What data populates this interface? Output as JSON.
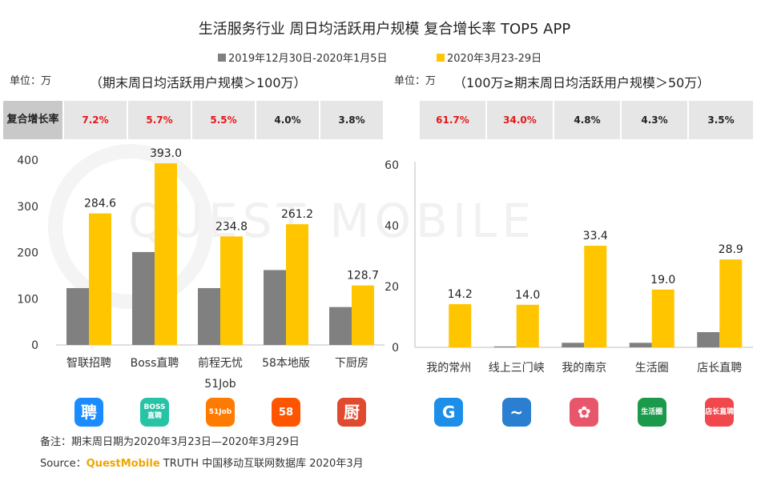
{
  "title": "生活服务行业 周日均活跃用户规模 复合增长率 TOP5 APP",
  "legend": [
    {
      "label": "2019年12月30日-2020年1月5日",
      "color": "#808080"
    },
    {
      "label": "2020年3月23-29日",
      "color": "#ffc600"
    }
  ],
  "left_panel": {
    "unit": "单位：万",
    "subtitle": "（期末周日均活跃用户规模＞100万）",
    "cagr_label": "复合增长率",
    "cagr": [
      "7.2%",
      "5.7%",
      "5.5%",
      "4.0%",
      "3.8%"
    ]
  },
  "right_panel": {
    "unit": "单位：万",
    "subtitle": "（100万≥期末周日均活跃用户规模＞50万）",
    "cagr": [
      "61.7%",
      "34.0%",
      "4.8%",
      "4.3%",
      "3.5%"
    ]
  },
  "icons": {
    "left": [
      {
        "name": "zhilian-app-icon",
        "text": "聘",
        "color": "#1a8cff"
      },
      {
        "name": "boss-app-icon",
        "text": "BOSS直聘",
        "color": "#27c3a5"
      },
      {
        "name": "51job-app-icon",
        "text": "51Job",
        "color": "#ff7a00"
      },
      {
        "name": "58-app-icon",
        "text": "58",
        "color": "#ff5500"
      },
      {
        "name": "xiachufang-app-icon",
        "text": "厨",
        "color": "#e04a2f"
      }
    ],
    "right": [
      {
        "name": "wodechangzhou-app-icon",
        "text": "G",
        "color": "#1e8fe8"
      },
      {
        "name": "sanmenxia-app-icon",
        "text": "~",
        "color": "#2a7fd0"
      },
      {
        "name": "wodenanjing-app-icon",
        "text": "✿",
        "color": "#e8566b"
      },
      {
        "name": "shenghuoquan-app-icon",
        "text": "生活圈",
        "color": "#1a9a4a"
      },
      {
        "name": "dianzhang-app-icon",
        "text": "店长直聘",
        "color": "#f0484d"
      }
    ]
  },
  "note": "备注：期末周日期为2020年3月23日—2020年3月29日",
  "source": {
    "prefix": "Source：",
    "brand": "QuestMobile",
    "rest": " TRUTH 中国移动互联网数据库 2020年3月"
  },
  "watermark": "QUEST MOBILE",
  "chart_data": [
    {
      "type": "bar",
      "categories": [
        "智联招聘",
        "Boss直聘",
        "前程无忧51Job",
        "58本地版",
        "下厨房"
      ],
      "series": [
        {
          "name": "2019年12月30日-2020年1月5日",
          "values": [
            123,
            201,
            123,
            162,
            82
          ]
        },
        {
          "name": "2020年3月23-29日",
          "values": [
            284.6,
            393.0,
            234.8,
            261.2,
            128.7
          ]
        }
      ],
      "data_labels": [
        "284.6",
        "393.0",
        "234.8",
        "261.2",
        "128.7"
      ],
      "yticks": [
        "0",
        "100",
        "200",
        "300",
        "400"
      ],
      "ylim": [
        0,
        400
      ]
    },
    {
      "type": "bar",
      "categories": [
        "我的常州",
        "线上三门峡",
        "我的南京",
        "生活圈",
        "店长直聘"
      ],
      "series": [
        {
          "name": "2019年12月30日-2020年1月5日",
          "values": [
            0,
            0.3,
            1.5,
            1.5,
            5
          ]
        },
        {
          "name": "2020年3月23-29日",
          "values": [
            14.2,
            14.0,
            33.4,
            19.0,
            28.9
          ]
        }
      ],
      "data_labels": [
        "14.2",
        "14.0",
        "33.4",
        "19.0",
        "28.9"
      ],
      "yticks": [
        "0",
        "20",
        "40",
        "60"
      ],
      "ylim": [
        0,
        60
      ]
    }
  ]
}
